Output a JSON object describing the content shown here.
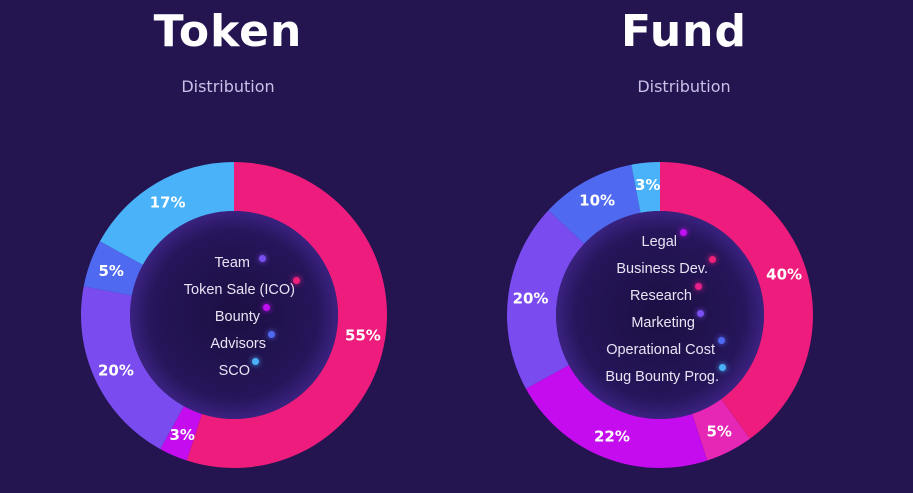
{
  "panels": [
    {
      "title": "Token",
      "subtitle": "Distribution",
      "legend": [
        {
          "label": "Team",
          "color": "#7a4ef0"
        },
        {
          "label": "Token Sale (ICO)",
          "color": "#f0207a"
        },
        {
          "label": "Bounty",
          "color": "#c010f0"
        },
        {
          "label": "Advisors",
          "color": "#4f6af0"
        },
        {
          "label": "SCO",
          "color": "#4ab0f8"
        }
      ]
    },
    {
      "title": "Fund",
      "subtitle": "Distribution",
      "legend": [
        {
          "label": "Legal",
          "color": "#c010f0"
        },
        {
          "label": "Business Dev.",
          "color": "#f0207a"
        },
        {
          "label": "Research",
          "color": "#e8208a"
        },
        {
          "label": "Marketing",
          "color": "#7a4ef0"
        },
        {
          "label": "Operational Cost",
          "color": "#4f6af0"
        },
        {
          "label": "Bug Bounty Prog.",
          "color": "#4ab0f8"
        }
      ]
    }
  ],
  "chart_data": [
    {
      "type": "pie",
      "title": "Token",
      "subtitle": "Distribution",
      "slices": [
        {
          "value": 55,
          "label": "55%",
          "color": "#ee1c7c"
        },
        {
          "value": 3,
          "label": "3%",
          "color": "#c40cef"
        },
        {
          "value": 20,
          "label": "20%",
          "color": "#7a4cf0"
        },
        {
          "value": 5,
          "label": "5%",
          "color": "#4f6af0"
        },
        {
          "value": 17,
          "label": "17%",
          "color": "#4ab2f8"
        }
      ]
    },
    {
      "type": "pie",
      "title": "Fund",
      "subtitle": "Distribution",
      "slices": [
        {
          "value": 40,
          "label": "40%",
          "color": "#ee1c7c"
        },
        {
          "value": 5,
          "label": "5%",
          "color": "#e626b4"
        },
        {
          "value": 22,
          "label": "22%",
          "color": "#c40cef"
        },
        {
          "value": 20,
          "label": "20%",
          "color": "#7a4cf0"
        },
        {
          "value": 10,
          "label": "10%",
          "color": "#4f6af0"
        },
        {
          "value": 3,
          "label": "3%",
          "color": "#4ab2f8"
        }
      ]
    }
  ]
}
